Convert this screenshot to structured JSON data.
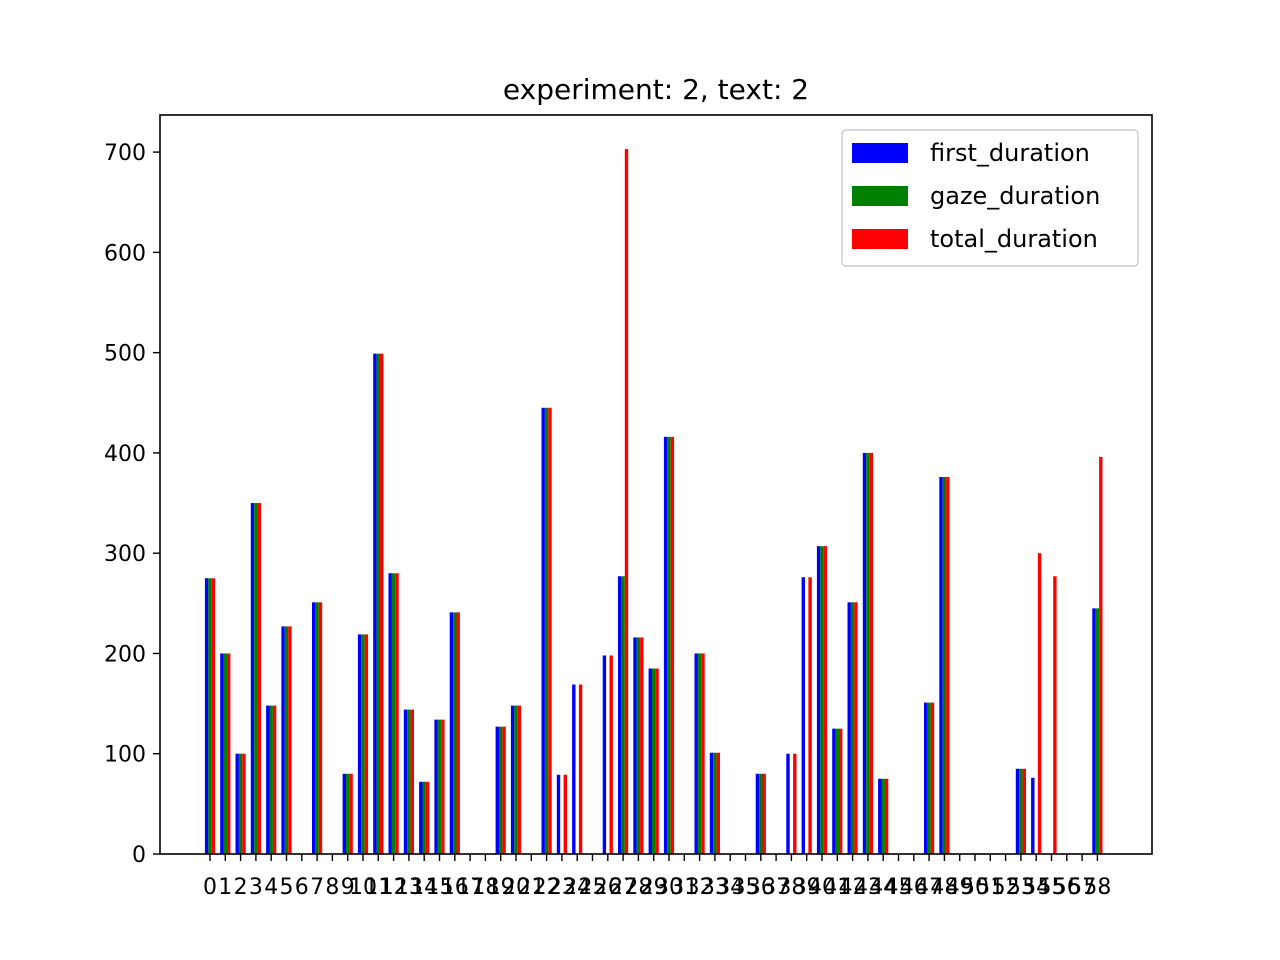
{
  "chart_data": {
    "type": "bar",
    "title": "experiment: 2, text: 2",
    "xlabel": "",
    "ylabel": "",
    "ylim": [
      0,
      737
    ],
    "yticks": [
      0,
      100,
      200,
      300,
      400,
      500,
      600,
      700
    ],
    "grid": false,
    "legend_position": "top-right",
    "categories": [
      "0",
      "1",
      "2",
      "3",
      "4",
      "5",
      "6",
      "7",
      "8",
      "9",
      "10",
      "11",
      "12",
      "13",
      "14",
      "15",
      "16",
      "17",
      "18",
      "19",
      "20",
      "21",
      "22",
      "23",
      "24",
      "25",
      "26",
      "27",
      "28",
      "29",
      "30",
      "31",
      "32",
      "33",
      "34",
      "35",
      "36",
      "37",
      "38",
      "39",
      "40",
      "41",
      "42",
      "43",
      "44",
      "45",
      "46",
      "47",
      "48",
      "49",
      "50",
      "51",
      "52",
      "53",
      "54",
      "55",
      "56",
      "57",
      "58"
    ],
    "series": [
      {
        "name": "first_duration",
        "color": "#0000ff",
        "values": [
          275,
          200,
          100,
          350,
          148,
          227,
          0,
          251,
          0,
          80,
          219,
          499,
          280,
          144,
          72,
          134,
          241,
          0,
          0,
          127,
          148,
          0,
          445,
          79,
          169,
          0,
          198,
          277,
          216,
          185,
          416,
          0,
          200,
          101,
          0,
          0,
          80,
          0,
          100,
          276,
          307,
          125,
          251,
          400,
          75,
          0,
          0,
          151,
          376,
          0,
          0,
          0,
          0,
          85,
          76,
          0,
          0,
          0,
          245
        ]
      },
      {
        "name": "gaze_duration",
        "color": "#008000",
        "values": [
          275,
          200,
          100,
          350,
          148,
          227,
          0,
          251,
          0,
          80,
          219,
          499,
          280,
          144,
          72,
          134,
          241,
          0,
          0,
          127,
          148,
          0,
          445,
          0,
          0,
          0,
          0,
          277,
          216,
          185,
          416,
          0,
          200,
          101,
          0,
          0,
          80,
          0,
          0,
          0,
          307,
          125,
          251,
          400,
          75,
          0,
          0,
          151,
          376,
          0,
          0,
          0,
          0,
          85,
          0,
          0,
          0,
          0,
          245
        ]
      },
      {
        "name": "total_duration",
        "color": "#ff0000",
        "values": [
          275,
          200,
          100,
          350,
          148,
          227,
          0,
          251,
          0,
          80,
          219,
          499,
          280,
          144,
          72,
          134,
          241,
          0,
          0,
          127,
          148,
          0,
          445,
          79,
          169,
          0,
          198,
          703,
          216,
          185,
          416,
          0,
          200,
          101,
          0,
          0,
          80,
          0,
          100,
          276,
          307,
          125,
          251,
          400,
          75,
          0,
          0,
          151,
          376,
          0,
          0,
          0,
          0,
          85,
          300,
          277,
          0,
          0,
          396
        ]
      }
    ]
  }
}
